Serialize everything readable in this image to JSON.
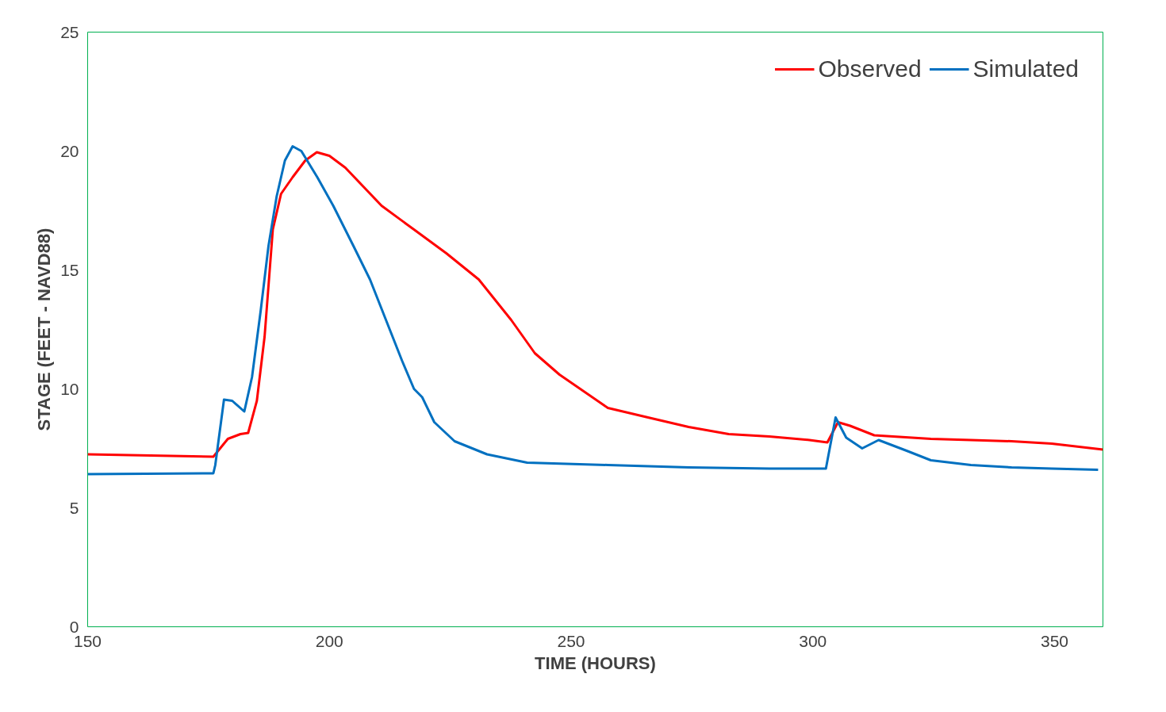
{
  "chart_data": {
    "type": "line",
    "xlabel": "TIME (HOURS)",
    "ylabel": "STAGE (FEET - NAVD88)",
    "xlim": [
      150,
      360
    ],
    "xticks": [
      150,
      200,
      250,
      300,
      350
    ],
    "ylim": [
      0,
      25
    ],
    "yticks": [
      0,
      5,
      10,
      15,
      20,
      25
    ],
    "grid": false,
    "legend": "top right",
    "marker": "none",
    "line_style": "solid",
    "series": [
      {
        "name": "Observed",
        "color": "#ff0000",
        "x": [
          150,
          176,
          179,
          181.6,
          183.2,
          185,
          186.6,
          188.3,
          190,
          192.4,
          195,
          197.4,
          200,
          203.3,
          210.8,
          217.5,
          224.2,
          230.9,
          237.6,
          242.5,
          247.6,
          257.6,
          265.9,
          274.3,
          282.6,
          291,
          299.3,
          303,
          305.2,
          307.7,
          312.7,
          324.4,
          332.7,
          341.1,
          349.4,
          360
        ],
        "values": [
          7.25,
          7.15,
          7.9,
          8.1,
          8.15,
          9.5,
          12.2,
          16.7,
          18.2,
          18.9,
          19.6,
          19.95,
          19.8,
          19.3,
          17.7,
          16.7,
          15.7,
          14.6,
          12.9,
          11.5,
          10.6,
          9.2,
          8.8,
          8.4,
          8.1,
          8.0,
          7.85,
          7.75,
          8.6,
          8.45,
          8.05,
          7.9,
          7.85,
          7.8,
          7.7,
          7.45
        ]
      },
      {
        "name": "Simulated",
        "color": "#0070c0",
        "x": [
          150,
          176,
          176.4,
          178.2,
          179.9,
          182.4,
          184,
          185.8,
          187.4,
          189.1,
          190.8,
          192.4,
          194.2,
          197.5,
          200.8,
          205,
          208.4,
          211.7,
          215,
          217.5,
          219.2,
          221.7,
          225.9,
          232.6,
          240.9,
          257.6,
          274.3,
          291,
          302.7,
          304.7,
          306.9,
          310.2,
          313.6,
          319.4,
          324.4,
          332.7,
          341.1,
          349.4,
          359
        ],
        "values": [
          6.42,
          6.45,
          6.8,
          9.55,
          9.5,
          9.05,
          10.5,
          13.3,
          16,
          18.1,
          19.6,
          20.2,
          20,
          18.9,
          17.7,
          16,
          14.6,
          12.9,
          11.2,
          10,
          9.65,
          8.6,
          7.8,
          7.25,
          6.9,
          6.8,
          6.7,
          6.65,
          6.65,
          8.8,
          7.95,
          7.5,
          7.85,
          7.4,
          7.0,
          6.8,
          6.7,
          6.65,
          6.6
        ]
      }
    ]
  }
}
